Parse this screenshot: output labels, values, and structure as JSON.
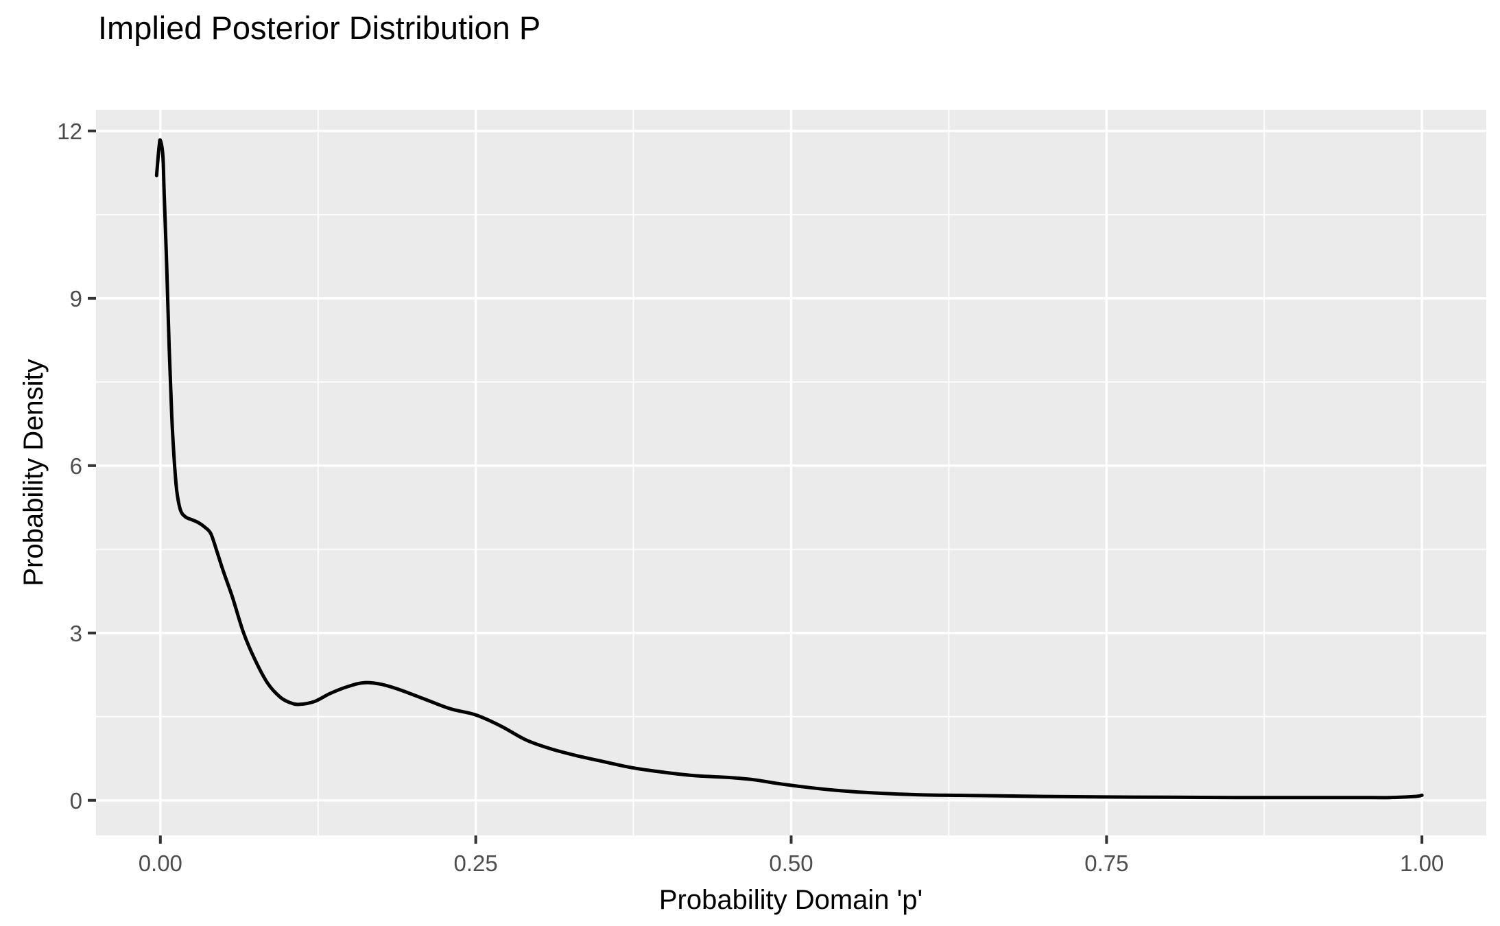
{
  "chart_data": {
    "type": "line",
    "title": "Implied Posterior Distribution P",
    "xlabel": "Probability Domain 'p'",
    "ylabel": "Probability Density",
    "legend": "none",
    "grid": true,
    "style": "ggplot2-gray-panel",
    "xlim": [
      -0.051,
      1.051
    ],
    "ylim": [
      -0.63,
      12.38
    ],
    "x_ticks": [
      {
        "value": 0.0,
        "label": "0.00"
      },
      {
        "value": 0.25,
        "label": "0.25"
      },
      {
        "value": 0.5,
        "label": "0.50"
      },
      {
        "value": 0.75,
        "label": "0.75"
      },
      {
        "value": 1.0,
        "label": "1.00"
      }
    ],
    "y_ticks": [
      {
        "value": 0,
        "label": "0"
      },
      {
        "value": 3,
        "label": "3"
      },
      {
        "value": 6,
        "label": "6"
      },
      {
        "value": 9,
        "label": "9"
      },
      {
        "value": 12,
        "label": "12"
      }
    ],
    "x_minor_gridlines": [
      0.125,
      0.375,
      0.625,
      0.875
    ],
    "y_minor_gridlines": [
      1.5,
      4.5,
      7.5,
      10.5
    ],
    "colors": {
      "figure_background": "#FFFFFF",
      "panel_background": "#EBEBEB",
      "gridline": "#FFFFFF",
      "curve": "#000000",
      "axis_text": "#4D4D4D",
      "tick_mark": "#333333",
      "title_text": "#000000"
    },
    "series": [
      {
        "name": "posterior density curve",
        "points": [
          [
            -0.003,
            11.2
          ],
          [
            -0.001,
            11.72
          ],
          [
            0.0,
            11.83
          ],
          [
            0.002,
            11.55
          ],
          [
            0.003,
            10.9
          ],
          [
            0.005,
            9.6
          ],
          [
            0.007,
            8.1
          ],
          [
            0.009,
            6.9
          ],
          [
            0.011,
            6.1
          ],
          [
            0.013,
            5.55
          ],
          [
            0.016,
            5.2
          ],
          [
            0.02,
            5.08
          ],
          [
            0.025,
            5.03
          ],
          [
            0.03,
            4.98
          ],
          [
            0.035,
            4.9
          ],
          [
            0.04,
            4.78
          ],
          [
            0.045,
            4.45
          ],
          [
            0.05,
            4.1
          ],
          [
            0.057,
            3.65
          ],
          [
            0.066,
            3.0
          ],
          [
            0.075,
            2.52
          ],
          [
            0.085,
            2.1
          ],
          [
            0.095,
            1.85
          ],
          [
            0.103,
            1.75
          ],
          [
            0.11,
            1.72
          ],
          [
            0.122,
            1.77
          ],
          [
            0.135,
            1.92
          ],
          [
            0.15,
            2.05
          ],
          [
            0.162,
            2.11
          ],
          [
            0.175,
            2.08
          ],
          [
            0.19,
            1.98
          ],
          [
            0.21,
            1.81
          ],
          [
            0.23,
            1.64
          ],
          [
            0.25,
            1.53
          ],
          [
            0.27,
            1.33
          ],
          [
            0.29,
            1.08
          ],
          [
            0.31,
            0.92
          ],
          [
            0.33,
            0.8
          ],
          [
            0.35,
            0.7
          ],
          [
            0.375,
            0.58
          ],
          [
            0.4,
            0.5
          ],
          [
            0.425,
            0.44
          ],
          [
            0.45,
            0.41
          ],
          [
            0.47,
            0.37
          ],
          [
            0.49,
            0.3
          ],
          [
            0.51,
            0.24
          ],
          [
            0.535,
            0.18
          ],
          [
            0.56,
            0.14
          ],
          [
            0.6,
            0.1
          ],
          [
            0.65,
            0.085
          ],
          [
            0.7,
            0.07
          ],
          [
            0.75,
            0.06
          ],
          [
            0.8,
            0.055
          ],
          [
            0.85,
            0.05
          ],
          [
            0.9,
            0.05
          ],
          [
            0.95,
            0.05
          ],
          [
            0.975,
            0.05
          ],
          [
            0.995,
            0.07
          ],
          [
            1.0,
            0.09
          ]
        ]
      }
    ]
  }
}
